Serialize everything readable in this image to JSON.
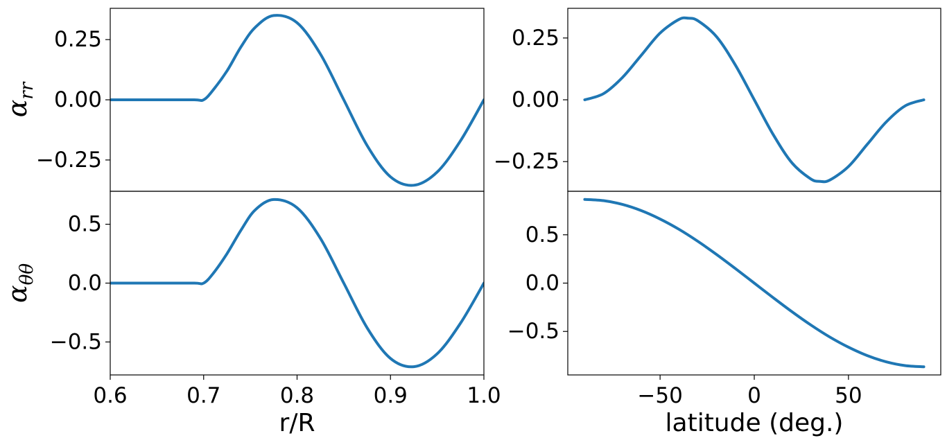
{
  "chart_data": [
    {
      "type": "line",
      "panel": "top-left",
      "title": "",
      "xlabel": "",
      "ylabel": {
        "symbol": "α",
        "subscript": "rr"
      },
      "xlim": [
        0.6,
        1.0
      ],
      "ylim": [
        -0.38,
        0.38
      ],
      "xticks": [],
      "yticks": [
        0.25,
        0.0,
        -0.25
      ],
      "ytick_labels": [
        "0.25",
        "0.00",
        "−0.25"
      ],
      "series": [
        {
          "color": "#1f77b4",
          "x": [
            0.6,
            0.65,
            0.69,
            0.7,
            0.71,
            0.725,
            0.74,
            0.755,
            0.775,
            0.8,
            0.825,
            0.85,
            0.875,
            0.9,
            0.925,
            0.95,
            0.975,
            1.0
          ],
          "y": [
            0.0,
            0.0,
            0.0,
            0.0,
            0.04,
            0.12,
            0.22,
            0.3,
            0.35,
            0.32,
            0.19,
            0.0,
            -0.19,
            -0.32,
            -0.355,
            -0.3,
            -0.17,
            0.0
          ]
        }
      ]
    },
    {
      "type": "line",
      "panel": "bottom-left",
      "title": "",
      "xlabel": "r/R",
      "ylabel": {
        "symbol": "α",
        "subscript": "θθ"
      },
      "xlim": [
        0.6,
        1.0
      ],
      "ylim": [
        -0.78,
        0.78
      ],
      "xticks": [
        0.6,
        0.7,
        0.8,
        0.9,
        1.0
      ],
      "xtick_labels": [
        "0.6",
        "0.7",
        "0.8",
        "0.9",
        "1.0"
      ],
      "yticks": [
        0.5,
        0.0,
        -0.5
      ],
      "ytick_labels": [
        "0.5",
        "0.0",
        "−0.5"
      ],
      "series": [
        {
          "color": "#1f77b4",
          "x": [
            0.6,
            0.65,
            0.69,
            0.7,
            0.71,
            0.725,
            0.74,
            0.755,
            0.775,
            0.8,
            0.825,
            0.85,
            0.875,
            0.9,
            0.925,
            0.95,
            0.975,
            1.0
          ],
          "y": [
            0.0,
            0.0,
            0.0,
            0.0,
            0.08,
            0.25,
            0.45,
            0.62,
            0.71,
            0.64,
            0.38,
            0.0,
            -0.38,
            -0.64,
            -0.71,
            -0.6,
            -0.34,
            0.0
          ]
        }
      ]
    },
    {
      "type": "line",
      "panel": "top-right",
      "title": "",
      "xlabel": "",
      "ylabel": "",
      "xlim": [
        -99,
        99
      ],
      "ylim": [
        -0.37,
        0.37
      ],
      "xticks": [],
      "yticks": [
        0.25,
        0.0,
        -0.25
      ],
      "ytick_labels": [
        "0.25",
        "0.00",
        "−0.25"
      ],
      "series": [
        {
          "color": "#1f77b4",
          "x": [
            -90,
            -80,
            -70,
            -60,
            -50,
            -40,
            -35,
            -30,
            -20,
            -10,
            0,
            10,
            20,
            30,
            35,
            40,
            50,
            60,
            70,
            80,
            90
          ],
          "y": [
            0.0,
            0.025,
            0.09,
            0.18,
            0.27,
            0.325,
            0.33,
            0.32,
            0.255,
            0.14,
            0.0,
            -0.14,
            -0.255,
            -0.32,
            -0.33,
            -0.325,
            -0.27,
            -0.18,
            -0.09,
            -0.025,
            0.0
          ]
        }
      ]
    },
    {
      "type": "line",
      "panel": "bottom-right",
      "title": "",
      "xlabel": "latitude (deg.)",
      "ylabel": "",
      "xlim": [
        -99,
        99
      ],
      "ylim": [
        -0.95,
        0.95
      ],
      "xticks": [
        -50,
        0,
        50
      ],
      "xtick_labels": [
        "−50",
        "0",
        "50"
      ],
      "yticks": [
        0.5,
        0.0,
        -0.5
      ],
      "ytick_labels": [
        "0.5",
        "0.0",
        "−0.5"
      ],
      "series": [
        {
          "color": "#1f77b4",
          "x": [
            -90,
            -80,
            -70,
            -60,
            -50,
            -40,
            -30,
            -20,
            -10,
            0,
            10,
            20,
            30,
            40,
            50,
            60,
            70,
            80,
            90
          ],
          "y": [
            0.866,
            0.853,
            0.814,
            0.75,
            0.663,
            0.557,
            0.433,
            0.296,
            0.15,
            0.0,
            -0.15,
            -0.296,
            -0.433,
            -0.557,
            -0.663,
            -0.75,
            -0.814,
            -0.853,
            -0.866
          ]
        }
      ]
    }
  ]
}
